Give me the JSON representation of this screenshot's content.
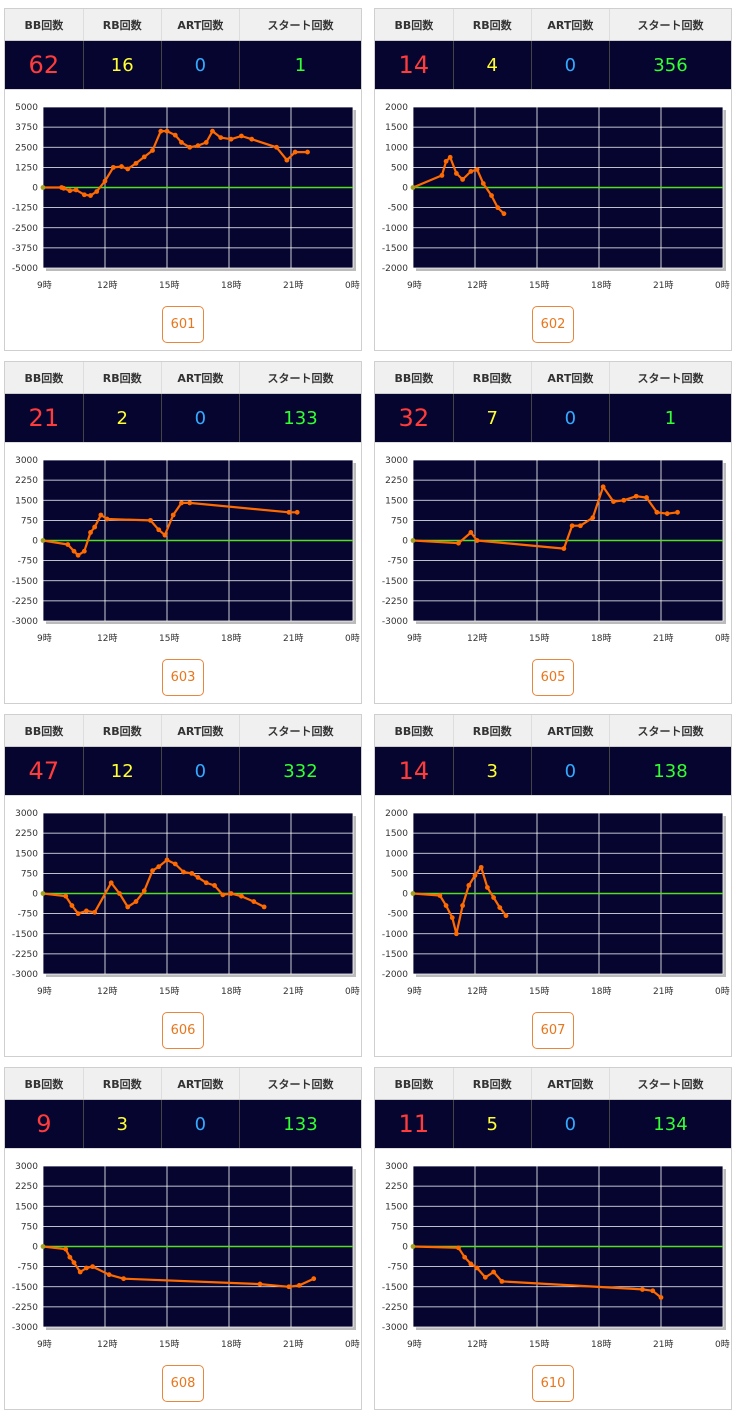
{
  "headers": {
    "bb": "BB回数",
    "rb": "RB回数",
    "art": "ART回数",
    "start": "スタート回数"
  },
  "colors": {
    "bb": "#ff3b3b",
    "rb": "#ffff33",
    "art": "#33aaff",
    "start": "#33ff33",
    "line": "#ff6a00",
    "zero": "#55dd22",
    "plot_bg": "#050530"
  },
  "x_tick_labels": [
    "9時",
    "12時",
    "15時",
    "18時",
    "21時",
    "0時"
  ],
  "machines": [
    {
      "number": "601",
      "bb": "62",
      "rb": "16",
      "art": "0",
      "start": "1",
      "chart_data": {
        "type": "line",
        "xlim": [
          9,
          24
        ],
        "ylim": [
          -5000,
          5000
        ],
        "y_ticks": [
          5000,
          3750,
          2500,
          1250,
          0,
          -1250,
          -2500,
          -3750,
          -5000
        ],
        "y_tick_labels": [
          "5000",
          "3750",
          "2500",
          "1250",
          "0",
          "-1250",
          "-2500",
          "-3750",
          "-5000"
        ],
        "x": [
          9.0,
          9.9,
          10.0,
          10.3,
          10.6,
          11.0,
          11.3,
          11.6,
          12.0,
          12.4,
          12.8,
          13.1,
          13.5,
          13.9,
          14.3,
          14.7,
          15.0,
          15.4,
          15.7,
          16.1,
          16.5,
          16.9,
          17.2,
          17.6,
          18.1,
          18.6,
          19.1,
          20.3,
          20.8,
          21.2,
          21.8
        ],
        "y": [
          0,
          0,
          -50,
          -200,
          -150,
          -450,
          -500,
          -250,
          400,
          1250,
          1300,
          1150,
          1500,
          1900,
          2300,
          3500,
          3500,
          3250,
          2800,
          2500,
          2600,
          2800,
          3500,
          3100,
          3000,
          3200,
          3000,
          2500,
          1700,
          2200,
          2200
        ]
      }
    },
    {
      "number": "602",
      "bb": "14",
      "rb": "4",
      "art": "0",
      "start": "356",
      "chart_data": {
        "type": "line",
        "xlim": [
          9,
          24
        ],
        "ylim": [
          -2000,
          2000
        ],
        "y_ticks": [
          2000,
          1500,
          1000,
          500,
          0,
          -500,
          -1000,
          -1500,
          -2000
        ],
        "y_tick_labels": [
          "2000",
          "1500",
          "1000",
          "500",
          "0",
          "-500",
          "-1000",
          "-1500",
          "-2000"
        ],
        "x": [
          9.0,
          10.4,
          10.6,
          10.8,
          11.1,
          11.4,
          11.8,
          12.1,
          12.4,
          12.8,
          13.1,
          13.4
        ],
        "y": [
          0,
          300,
          650,
          750,
          350,
          200,
          400,
          450,
          100,
          -200,
          -500,
          -650
        ]
      }
    },
    {
      "number": "603",
      "bb": "21",
      "rb": "2",
      "art": "0",
      "start": "133",
      "chart_data": {
        "type": "line",
        "xlim": [
          9,
          24
        ],
        "ylim": [
          -3000,
          3000
        ],
        "y_ticks": [
          3000,
          2250,
          1500,
          750,
          0,
          -750,
          -1500,
          -2250,
          -3000
        ],
        "y_tick_labels": [
          "3000",
          "2250",
          "1500",
          "750",
          "0",
          "-750",
          "-1500",
          "-2250",
          "-3000"
        ],
        "x": [
          9.0,
          10.2,
          10.5,
          10.7,
          11.0,
          11.3,
          11.5,
          11.8,
          12.1,
          14.2,
          14.6,
          14.9,
          15.3,
          15.7,
          16.1,
          20.9,
          21.3
        ],
        "y": [
          0,
          -150,
          -400,
          -550,
          -400,
          300,
          500,
          950,
          800,
          750,
          400,
          200,
          950,
          1400,
          1400,
          1050,
          1050
        ]
      }
    },
    {
      "number": "605",
      "bb": "32",
      "rb": "7",
      "art": "0",
      "start": "1",
      "chart_data": {
        "type": "line",
        "xlim": [
          9,
          24
        ],
        "ylim": [
          -3000,
          3000
        ],
        "y_ticks": [
          3000,
          2250,
          1500,
          750,
          0,
          -750,
          -1500,
          -2250,
          -3000
        ],
        "y_tick_labels": [
          "3000",
          "2250",
          "1500",
          "750",
          "0",
          "-750",
          "-1500",
          "-2250",
          "-3000"
        ],
        "x": [
          9.0,
          11.2,
          11.8,
          12.1,
          16.3,
          16.7,
          17.1,
          17.7,
          18.2,
          18.7,
          19.2,
          19.8,
          20.3,
          20.8,
          21.3,
          21.8
        ],
        "y": [
          0,
          -100,
          300,
          0,
          -300,
          550,
          550,
          850,
          2000,
          1450,
          1500,
          1650,
          1600,
          1050,
          1000,
          1050
        ]
      }
    },
    {
      "number": "606",
      "bb": "47",
      "rb": "12",
      "art": "0",
      "start": "332",
      "chart_data": {
        "type": "line",
        "xlim": [
          9,
          24
        ],
        "ylim": [
          -3000,
          3000
        ],
        "y_ticks": [
          3000,
          2250,
          1500,
          750,
          0,
          -750,
          -1500,
          -2250,
          -3000
        ],
        "y_tick_labels": [
          "3000",
          "2250",
          "1500",
          "750",
          "0",
          "-750",
          "-1500",
          "-2250",
          "-3000"
        ],
        "x": [
          9.0,
          10.1,
          10.4,
          10.7,
          11.1,
          11.5,
          12.3,
          12.7,
          13.1,
          13.5,
          13.9,
          14.3,
          14.6,
          15.0,
          15.4,
          15.8,
          16.2,
          16.5,
          16.9,
          17.3,
          17.7,
          18.1,
          18.6,
          19.2,
          19.7
        ],
        "y": [
          0,
          -100,
          -450,
          -750,
          -650,
          -700,
          400,
          0,
          -500,
          -300,
          100,
          850,
          1000,
          1250,
          1100,
          800,
          750,
          600,
          400,
          300,
          -50,
          0,
          -100,
          -300,
          -500
        ]
      }
    },
    {
      "number": "607",
      "bb": "14",
      "rb": "3",
      "art": "0",
      "start": "138",
      "chart_data": {
        "type": "line",
        "xlim": [
          9,
          24
        ],
        "ylim": [
          -2000,
          2000
        ],
        "y_ticks": [
          2000,
          1500,
          1000,
          500,
          0,
          -500,
          -1000,
          -1500,
          -2000
        ],
        "y_tick_labels": [
          "2000",
          "1500",
          "1000",
          "500",
          "0",
          "-500",
          "-1000",
          "-1500",
          "-2000"
        ],
        "x": [
          9.0,
          10.3,
          10.6,
          10.9,
          11.1,
          11.4,
          11.7,
          12.0,
          12.3,
          12.6,
          12.9,
          13.2,
          13.5
        ],
        "y": [
          0,
          -50,
          -300,
          -600,
          -1000,
          -300,
          200,
          450,
          650,
          150,
          -100,
          -350,
          -550
        ]
      }
    },
    {
      "number": "608",
      "bb": "9",
      "rb": "3",
      "art": "0",
      "start": "133",
      "chart_data": {
        "type": "line",
        "xlim": [
          9,
          24
        ],
        "ylim": [
          -3000,
          3000
        ],
        "y_ticks": [
          3000,
          2250,
          1500,
          750,
          0,
          -750,
          -1500,
          -2250,
          -3000
        ],
        "y_tick_labels": [
          "3000",
          "2250",
          "1500",
          "750",
          "0",
          "-750",
          "-1500",
          "-2250",
          "-3000"
        ],
        "x": [
          9.0,
          10.1,
          10.3,
          10.5,
          10.8,
          11.1,
          11.4,
          12.2,
          12.9,
          19.5,
          20.9,
          21.4,
          22.1
        ],
        "y": [
          0,
          -100,
          -400,
          -600,
          -950,
          -800,
          -750,
          -1050,
          -1200,
          -1400,
          -1500,
          -1450,
          -1200
        ]
      }
    },
    {
      "number": "610",
      "bb": "11",
      "rb": "5",
      "art": "0",
      "start": "134",
      "chart_data": {
        "type": "line",
        "xlim": [
          9,
          24
        ],
        "ylim": [
          -3000,
          3000
        ],
        "y_ticks": [
          3000,
          2250,
          1500,
          750,
          0,
          -750,
          -1500,
          -2250,
          -3000
        ],
        "y_tick_labels": [
          "3000",
          "2250",
          "1500",
          "750",
          "0",
          "-750",
          "-1500",
          "-2250",
          "-3000"
        ],
        "x": [
          9.0,
          11.2,
          11.5,
          11.8,
          12.1,
          12.5,
          12.9,
          13.3,
          20.1,
          20.6,
          21.0
        ],
        "y": [
          0,
          -50,
          -400,
          -650,
          -800,
          -1150,
          -950,
          -1300,
          -1600,
          -1650,
          -1900
        ]
      }
    }
  ]
}
